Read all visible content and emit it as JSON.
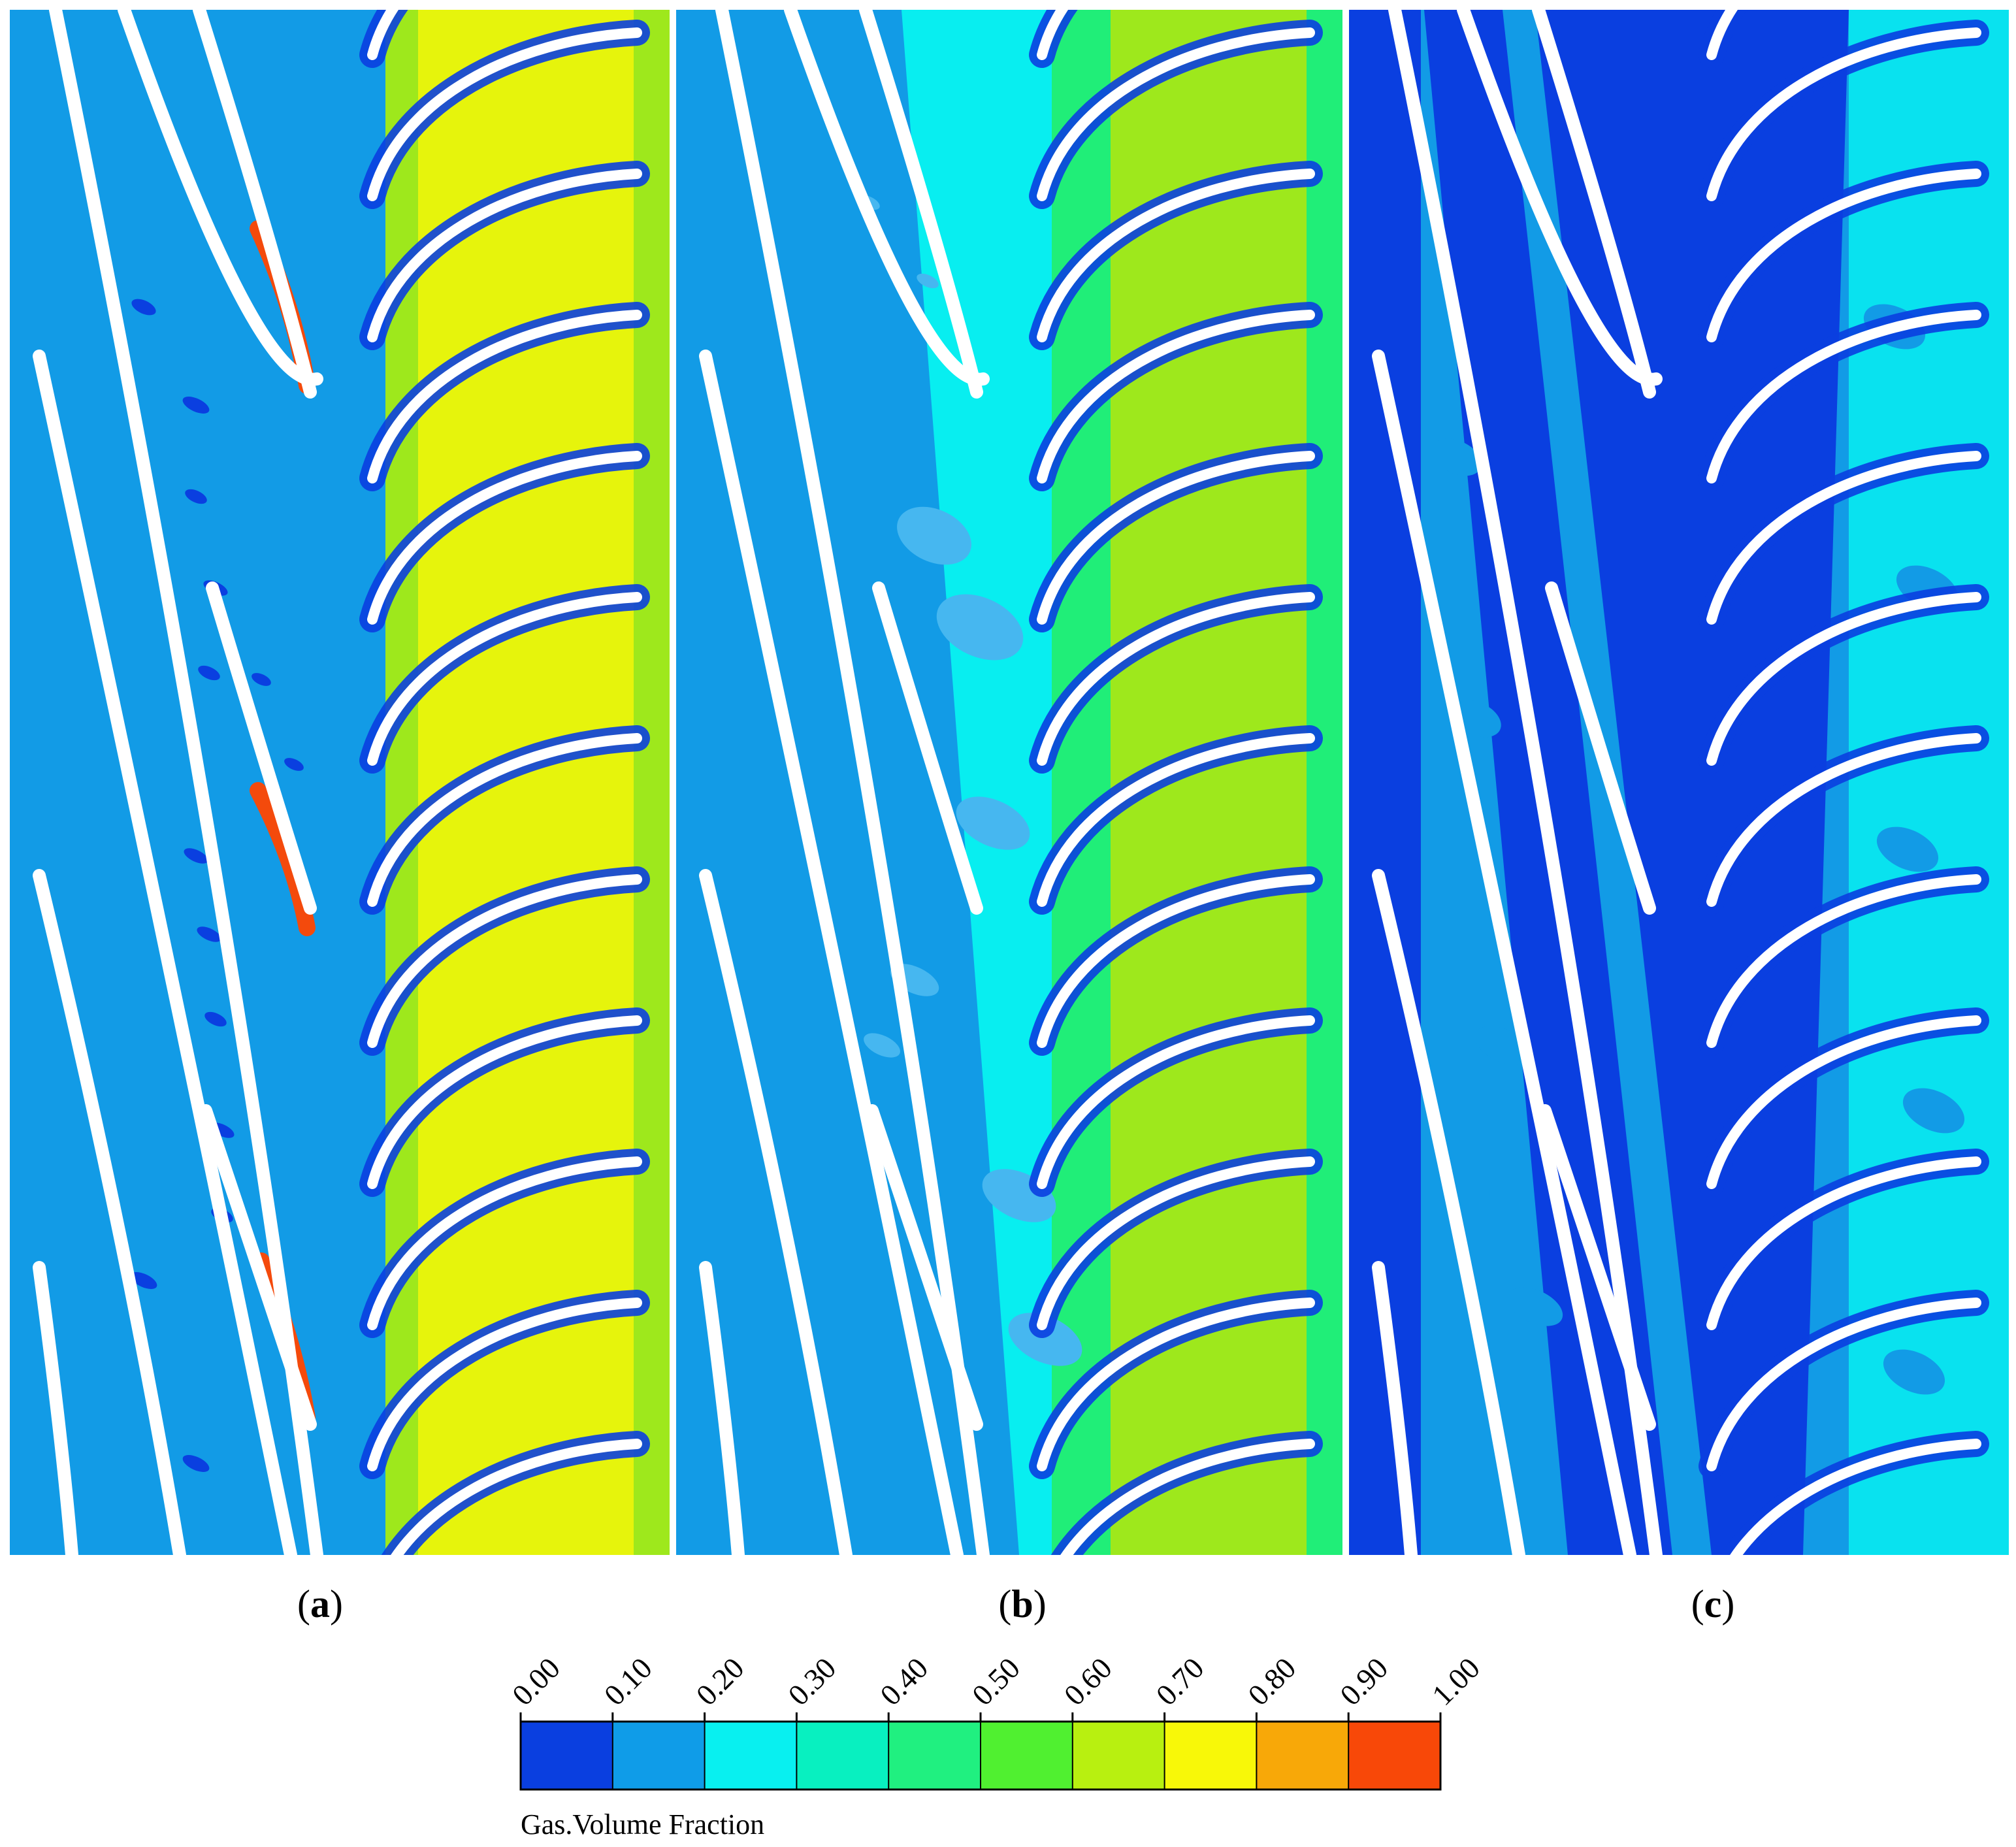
{
  "figure": {
    "panels": [
      {
        "id": "a",
        "label_prefix": "(",
        "label_letter": "a",
        "label_suffix": ")"
      },
      {
        "id": "b",
        "label_prefix": "(",
        "label_letter": "b",
        "label_suffix": ")"
      },
      {
        "id": "c",
        "label_prefix": "(",
        "label_letter": "c",
        "label_suffix": ")"
      }
    ],
    "colorbar": {
      "title": "Gas.Volume Fraction",
      "ticks": [
        "0.00",
        "0.10",
        "0.20",
        "0.30",
        "0.40",
        "0.50",
        "0.60",
        "0.70",
        "0.80",
        "0.90",
        "1.00"
      ],
      "colors": [
        "#0a3fe0",
        "#0f9ce8",
        "#08f0f0",
        "#08f0c0",
        "#20f080",
        "#50f030",
        "#b8f010",
        "#f8f808",
        "#f8a808",
        "#f84808"
      ]
    },
    "colors": {
      "background_flow": "#129be6",
      "low": "#0a3fe0",
      "mid_cyan": "#08eef0",
      "mid_green": "#30f060",
      "high_yellow": "#e6f40c",
      "peak_red": "#f44a0c",
      "blade": "#ffffff"
    }
  }
}
